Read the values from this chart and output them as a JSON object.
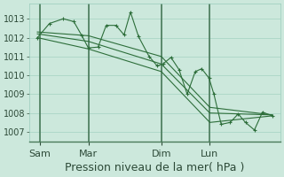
{
  "background_color": "#cce8dc",
  "grid_color": "#99ccbb",
  "line_color": "#2d6e3a",
  "dark_vline_color": "#4a7a5a",
  "x_ticks_labels": [
    "Sam",
    "Mar",
    "Dim",
    "Lun"
  ],
  "x_ticks_positions": [
    13,
    73,
    163,
    223
  ],
  "vline_positions": [
    13,
    73,
    163,
    223
  ],
  "xlabel": "Pression niveau de la mer( hPa )",
  "xlabel_fontsize": 9,
  "ylim": [
    1006.5,
    1013.8
  ],
  "yticks": [
    1007,
    1008,
    1009,
    1010,
    1011,
    1012,
    1013
  ],
  "ytick_fontsize": 7,
  "xtick_fontsize": 8,
  "xlim": [
    0,
    310
  ],
  "series1_x": [
    10,
    25,
    42,
    55,
    65,
    73,
    85,
    95,
    107,
    117,
    125,
    135,
    148,
    158,
    165,
    175,
    185,
    195,
    205,
    213,
    222,
    228,
    237,
    248,
    258,
    267,
    278,
    288,
    300
  ],
  "series1_y": [
    1012.0,
    1012.75,
    1013.0,
    1012.85,
    1012.1,
    1011.45,
    1011.5,
    1012.65,
    1012.65,
    1012.15,
    1013.35,
    1012.05,
    1011.0,
    1010.5,
    1010.6,
    1010.95,
    1010.3,
    1009.0,
    1010.2,
    1010.35,
    1009.85,
    1009.0,
    1007.4,
    1007.5,
    1007.95,
    1007.5,
    1007.1,
    1008.05,
    1007.85
  ],
  "series2_x": [
    10,
    73,
    163,
    223,
    300
  ],
  "series2_y": [
    1012.2,
    1011.8,
    1010.6,
    1008.0,
    1007.9
  ],
  "series3_x": [
    10,
    73,
    163,
    223,
    300
  ],
  "series3_y": [
    1012.0,
    1011.4,
    1010.2,
    1007.5,
    1007.85
  ],
  "series4_x": [
    10,
    73,
    163,
    223,
    300
  ],
  "series4_y": [
    1012.3,
    1012.1,
    1011.0,
    1008.3,
    1007.9
  ]
}
